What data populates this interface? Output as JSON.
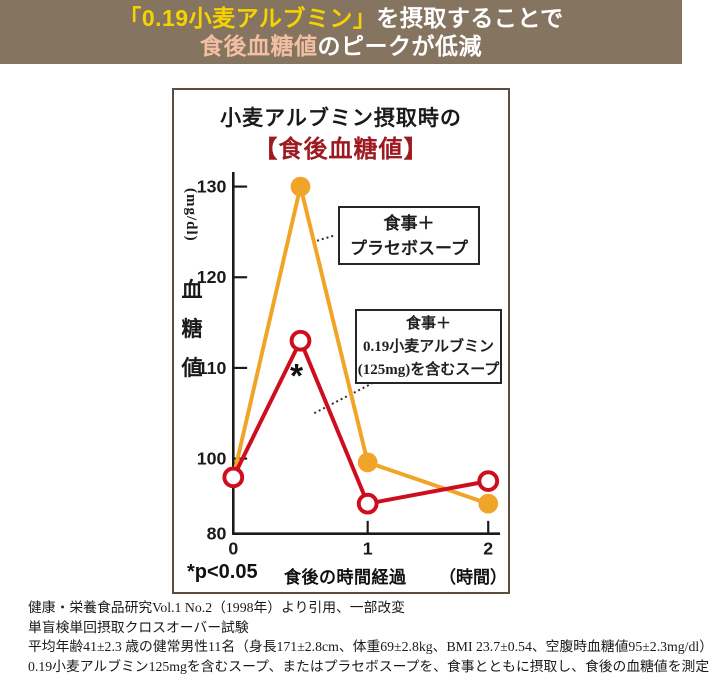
{
  "header": {
    "line1_highlight": "「0.19小麦アルブミン」",
    "line1_rest": "を摂取することで",
    "line2_highlight": "食後血糖値",
    "line2_rest": "のピークが低減",
    "colors": {
      "background": "#85745F",
      "highlight_yellow": "#F6D300",
      "highlight_salmon": "#F2BFA3",
      "text": "#FFFFFF"
    }
  },
  "chart": {
    "title_line1": "小麦アルブミン摂取時の",
    "title_line2": "【食後血糖値】",
    "y_unit": "(mg/dl)",
    "y_label_chars": {
      "c0": "血",
      "c1": "糖",
      "c2": "値"
    },
    "x_label": "食後の時間経過",
    "x_unit": "（時間）",
    "p_note": "*p<0.05",
    "asterisk": "*",
    "legend_placebo": {
      "line1": "食事＋",
      "line2": "プラセボスープ"
    },
    "legend_albumin": {
      "line1": "食事＋",
      "line2": "0.19小麦アルブミン",
      "line3": "(125mg)を含むスープ"
    },
    "colors": {
      "title_accent": "#9C1A20",
      "box_border": "#5A4E43",
      "axis": "#1a1a1a",
      "placebo_orange": "#F0A428",
      "albumin_red": "#CE0D1F"
    }
  },
  "chart_data": {
    "type": "line",
    "title": "小麦アルブミン摂取時の【食後血糖値】",
    "x": [
      0,
      0.5,
      1,
      2
    ],
    "x_tick_labels": [
      "0",
      "1",
      "2"
    ],
    "x_tick_values": [
      0,
      1,
      2
    ],
    "y_ticks": [
      130,
      120,
      110,
      100,
      80
    ],
    "ylim": [
      80,
      133
    ],
    "xlabel": "食後の時間経過（時間）",
    "ylabel": "血糖値 (mg/dl)",
    "grid": false,
    "legend_position": "inside-right",
    "note": "*p<0.05",
    "series": [
      {
        "name": "食事＋プラセボスープ",
        "color": "#F0A428",
        "marker": "filled-circle",
        "first_point_marker": false,
        "values": [
          95,
          130,
          99,
          88
        ]
      },
      {
        "name": "食事＋0.19小麦アルブミン(125mg)を含むスープ",
        "color": "#CE0D1F",
        "marker": "open-circle",
        "first_point_marker": true,
        "values": [
          95,
          113,
          88,
          94
        ]
      }
    ],
    "annotations": [
      {
        "text": "*",
        "x": 0.5,
        "y": 113,
        "meaning": "significant difference p<0.05"
      }
    ]
  },
  "footnotes": [
    "健康・栄養食品研究Vol.1 No.2（1998年）より引用、一部改変",
    "単盲検単回摂取クロスオーバー試験",
    "平均年齢41±2.3 歳の健常男性11名（身長171±2.8cm、体重69±2.8kg、BMI 23.7±0.54、空腹時血糖値95±2.3mg/dl）",
    "0.19小麦アルブミン125mgを含むスープ、またはプラセボスープを、食事とともに摂取し、食後の血糖値を測定"
  ]
}
